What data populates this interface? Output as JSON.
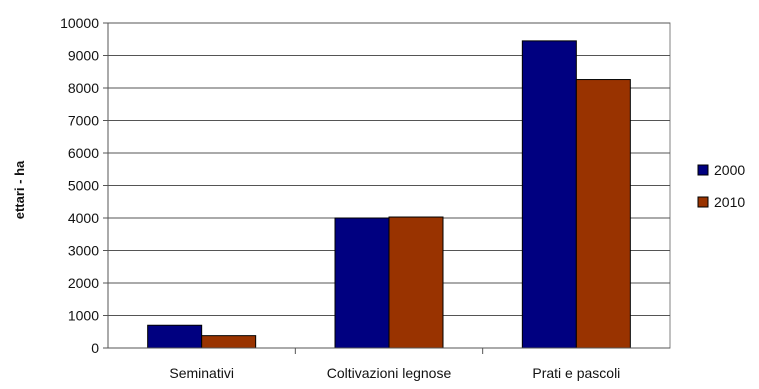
{
  "chart_data": {
    "type": "bar",
    "title": "",
    "xlabel": "",
    "ylabel": "ettari - ha",
    "categories": [
      "Seminativi",
      "Coltivazioni legnose",
      "Prati e pascoli"
    ],
    "series": [
      {
        "name": "2000",
        "values": [
          700,
          4000,
          9450
        ],
        "color": "#000080"
      },
      {
        "name": "2010",
        "values": [
          380,
          4030,
          8260
        ],
        "color": "#993300"
      }
    ],
    "ylim": [
      0,
      10000
    ],
    "yticks": [
      0,
      1000,
      2000,
      3000,
      4000,
      5000,
      6000,
      7000,
      8000,
      9000,
      10000
    ],
    "grid": true,
    "legend_position": "right"
  }
}
